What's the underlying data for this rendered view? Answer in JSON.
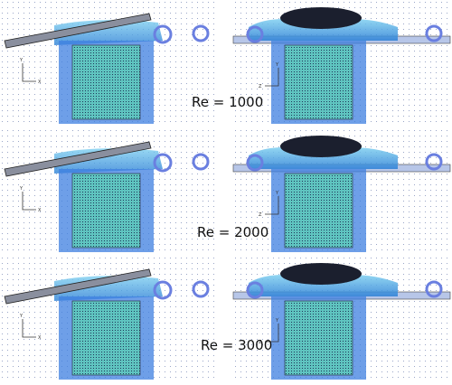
{
  "rows": [
    {
      "label": "Re = 1000",
      "left_axes": [
        "Y",
        "X"
      ],
      "right_axes": [
        "Y",
        "Z"
      ]
    },
    {
      "label": "Re = 2000",
      "left_axes": [
        "Y",
        "X"
      ],
      "right_axes": [
        "Y",
        "Z"
      ]
    },
    {
      "label": "Re = 3000",
      "left_axes": [
        "Y",
        "X"
      ],
      "right_axes": [
        "Y",
        "Z"
      ]
    }
  ]
}
